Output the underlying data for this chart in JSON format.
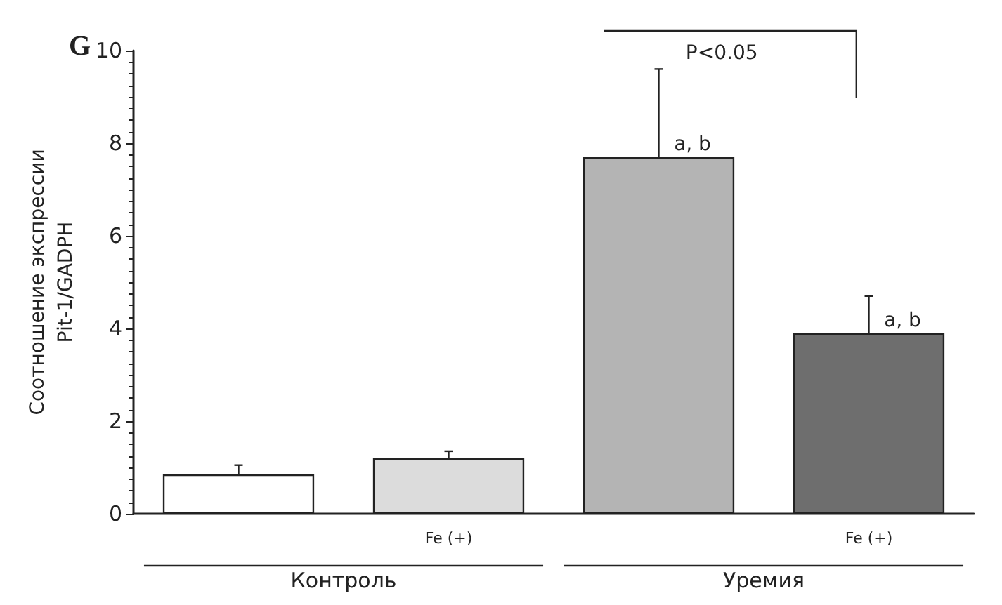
{
  "chart_data": {
    "type": "bar",
    "title": "G",
    "ylabel": "Соотношение экспрессии\nPit-1/GADPH",
    "categories": [
      null,
      "Fe (+)",
      null,
      "Fe (+)"
    ],
    "values": [
      0.85,
      1.2,
      7.7,
      3.9
    ],
    "colors": [
      "#ffffff",
      "#dcdcdc",
      "#b4b4b4",
      "#6e6e6e"
    ],
    "errors": [
      [
        0.85,
        1.05
      ],
      [
        1.2,
        1.35
      ],
      [
        7.7,
        9.6
      ],
      [
        3.9,
        4.7
      ]
    ],
    "ylim": [
      0,
      10
    ],
    "yticks": [
      0,
      2,
      4,
      6,
      8,
      10
    ],
    "grid": false,
    "annotations": [
      "P<0.05",
      "a, b",
      "a, b",
      "Контроль",
      "Уремия"
    ]
  }
}
